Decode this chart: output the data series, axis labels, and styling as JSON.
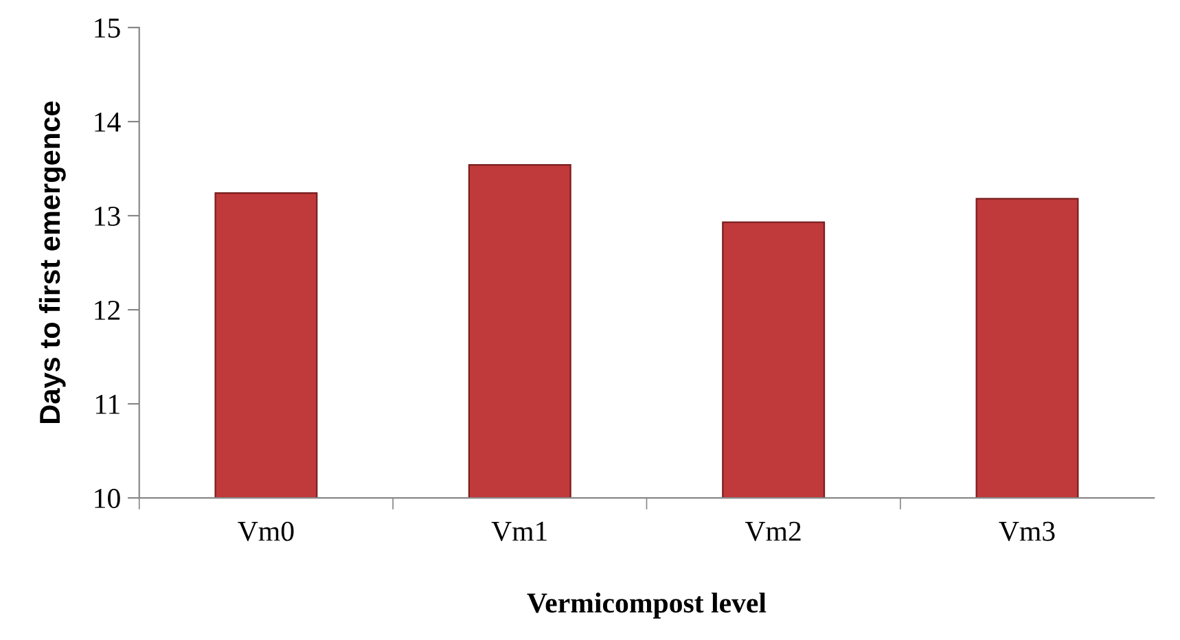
{
  "chart_data": {
    "type": "bar",
    "xlabel": "Vermicompost level",
    "ylabel": "Days to first emergence",
    "categories": [
      "Vm0",
      "Vm1",
      "Vm2",
      "Vm3"
    ],
    "values": [
      13.24,
      13.54,
      12.93,
      13.18
    ],
    "color": "#c0393b",
    "ylim": [
      10,
      15
    ],
    "yticks": [
      10,
      11,
      12,
      13,
      14,
      15
    ],
    "grid": false,
    "legend": false
  }
}
